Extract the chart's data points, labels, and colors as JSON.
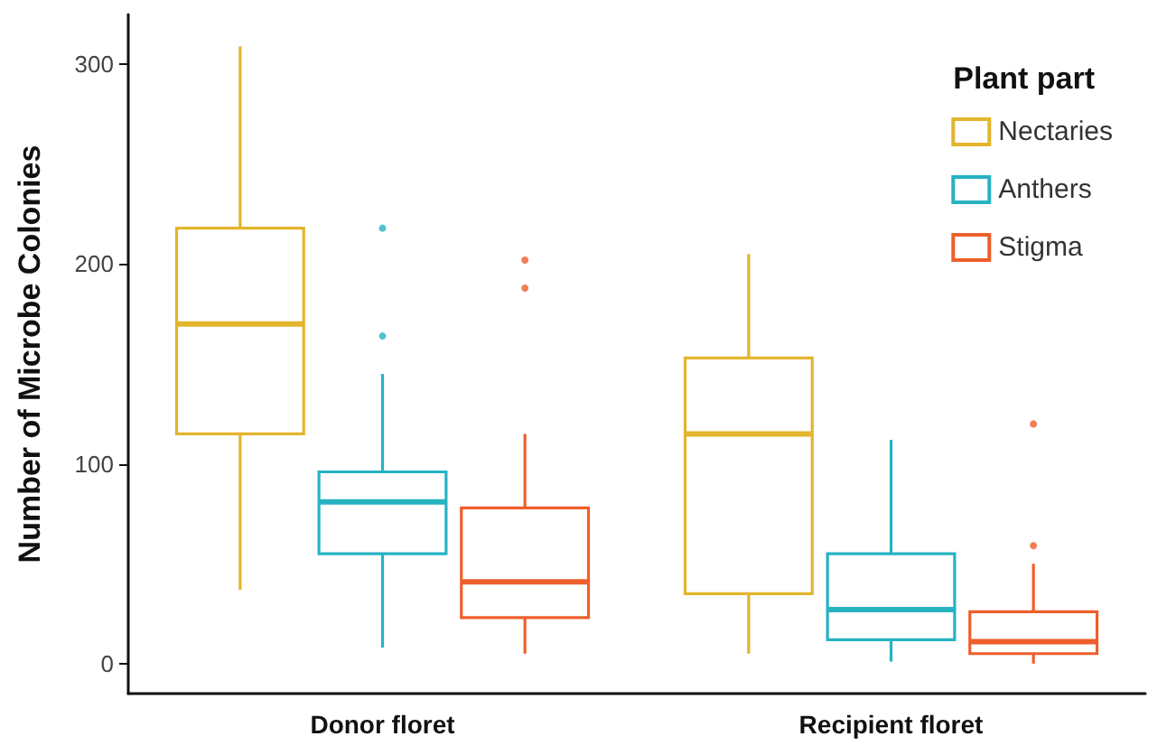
{
  "chart_data": {
    "type": "box",
    "ylabel": "Number of Microbe Colonies",
    "legend_title": "Plant part",
    "categories": [
      "Donor floret",
      "Recipient floret"
    ],
    "series": [
      {
        "name": "Nectaries",
        "color": "#e2b52c",
        "boxes": [
          {
            "low": 37,
            "q1": 115,
            "median": 170,
            "q3": 218,
            "high": 309
          },
          {
            "low": 5,
            "q1": 35,
            "median": 115,
            "q3": 153,
            "high": 205
          }
        ]
      },
      {
        "name": "Anthers",
        "color": "#27b3c2",
        "boxes": [
          {
            "low": 8,
            "q1": 55,
            "median": 81,
            "q3": 96,
            "high": 145,
            "outliers": [
              164,
              218
            ]
          },
          {
            "low": 1,
            "q1": 12,
            "median": 27,
            "q3": 55,
            "high": 112
          }
        ]
      },
      {
        "name": "Stigma",
        "color": "#ee5f2c",
        "boxes": [
          {
            "low": 5,
            "q1": 23,
            "median": 41,
            "q3": 78,
            "high": 115,
            "outliers": [
              188,
              202
            ]
          },
          {
            "low": 0,
            "q1": 5,
            "median": 11,
            "q3": 26,
            "high": 50,
            "outliers": [
              59,
              120
            ]
          }
        ]
      }
    ],
    "ylim": [
      -15,
      325
    ],
    "yticks": [
      0,
      100,
      200,
      300
    ],
    "grid": false,
    "legend": "top right"
  }
}
